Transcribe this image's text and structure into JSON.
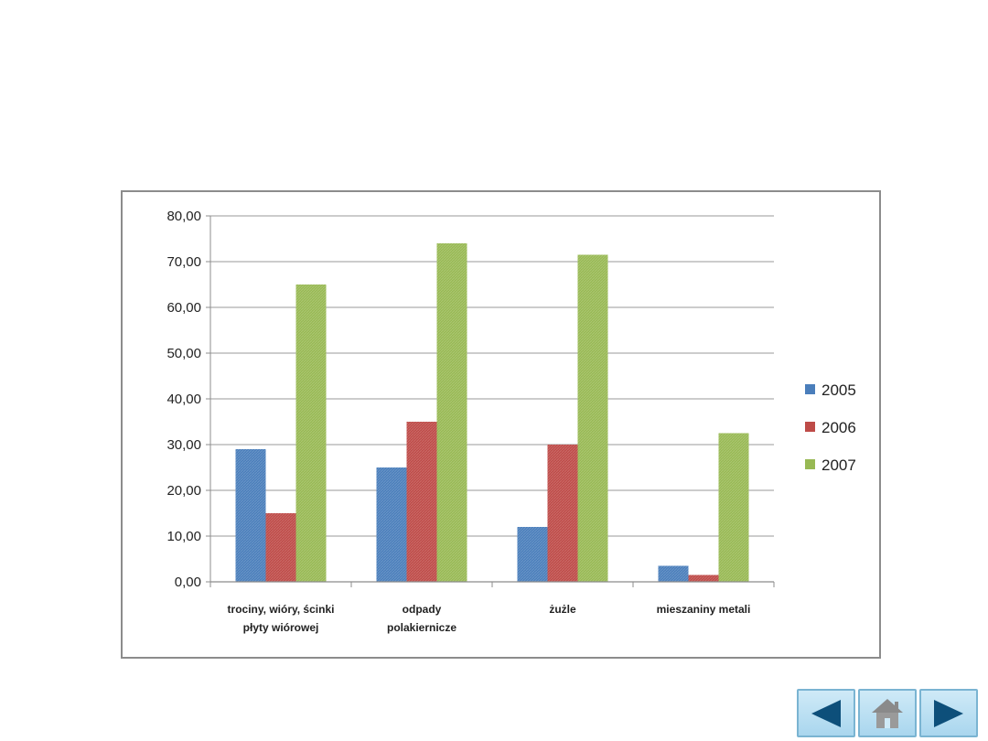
{
  "chart_data": {
    "type": "bar",
    "categories": [
      [
        "trociny, wióry, ścinki",
        "płyty wiórowej"
      ],
      [
        "odpady",
        "polakiernicze"
      ],
      [
        "żużle"
      ],
      [
        "mieszaniny metali"
      ]
    ],
    "series": [
      {
        "name": "2005",
        "color": "#4a7ebb",
        "values": [
          29.0,
          25.0,
          12.0,
          3.5
        ]
      },
      {
        "name": "2006",
        "color": "#be4b48",
        "values": [
          15.0,
          35.0,
          30.0,
          1.5
        ]
      },
      {
        "name": "2007",
        "color": "#98b954",
        "values": [
          65.0,
          74.0,
          71.5,
          32.5
        ]
      }
    ],
    "ylim": [
      0,
      80
    ],
    "yticks": [
      "0,00",
      "10,00",
      "20,00",
      "30,00",
      "40,00",
      "50,00",
      "60,00",
      "70,00",
      "80,00"
    ],
    "grid": true,
    "legend": "right"
  },
  "navigation": {
    "buttons": [
      "prev-icon",
      "home-icon",
      "next-icon"
    ]
  }
}
